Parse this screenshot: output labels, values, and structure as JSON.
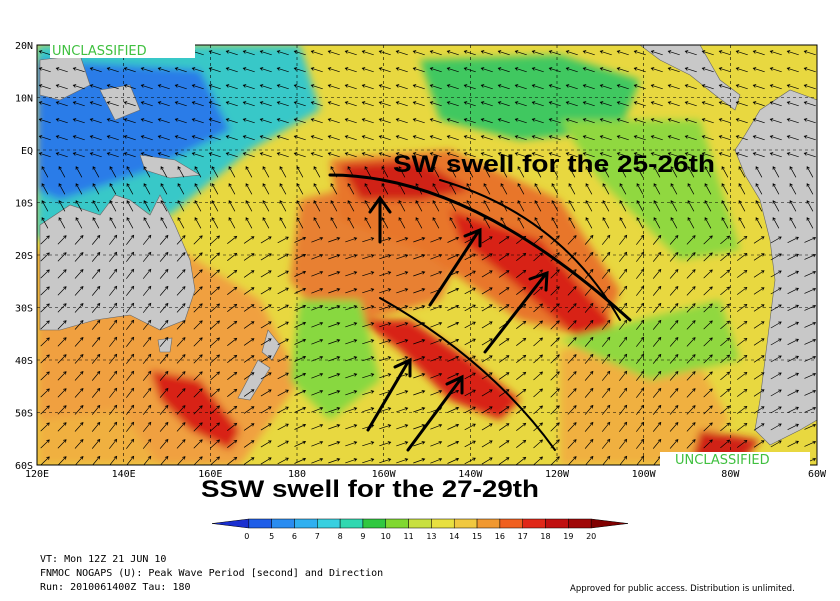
{
  "map": {
    "classification": "UNCLASSIFIED",
    "lat_labels": [
      "20N",
      "10N",
      "EQ",
      "10S",
      "20S",
      "30S",
      "40S",
      "50S",
      "60S"
    ],
    "lon_labels": [
      "120E",
      "140E",
      "160E",
      "180",
      "160W",
      "140W",
      "120W",
      "100W",
      "80W",
      "60W"
    ]
  },
  "annotations": [
    "SW swell for the 25-26th",
    "SSW swell for the 27-29th"
  ],
  "legend": {
    "labels": [
      "0",
      "5",
      "6",
      "7",
      "8",
      "9",
      "10",
      "11",
      "13",
      "14",
      "15",
      "16",
      "17",
      "18",
      "19",
      "20"
    ],
    "colors": [
      "#1a2fd0",
      "#1f5ee8",
      "#2a8cf0",
      "#30b0f0",
      "#38d0e0",
      "#30d8b0",
      "#30c840",
      "#80d830",
      "#c8e040",
      "#e8e040",
      "#f0c840",
      "#f09830",
      "#f06020",
      "#e02818",
      "#c01010",
      "#a00808",
      "#800000"
    ]
  },
  "footer": {
    "valid_time": "VT: Mon 12Z 21 JUN 10",
    "product": "FNMOC NOGAPS (U): Peak Wave Period [second] and Direction",
    "run": "Run: 2010061400Z Tau: 180",
    "approval": "Approved for public access. Distribution is unlimited."
  }
}
